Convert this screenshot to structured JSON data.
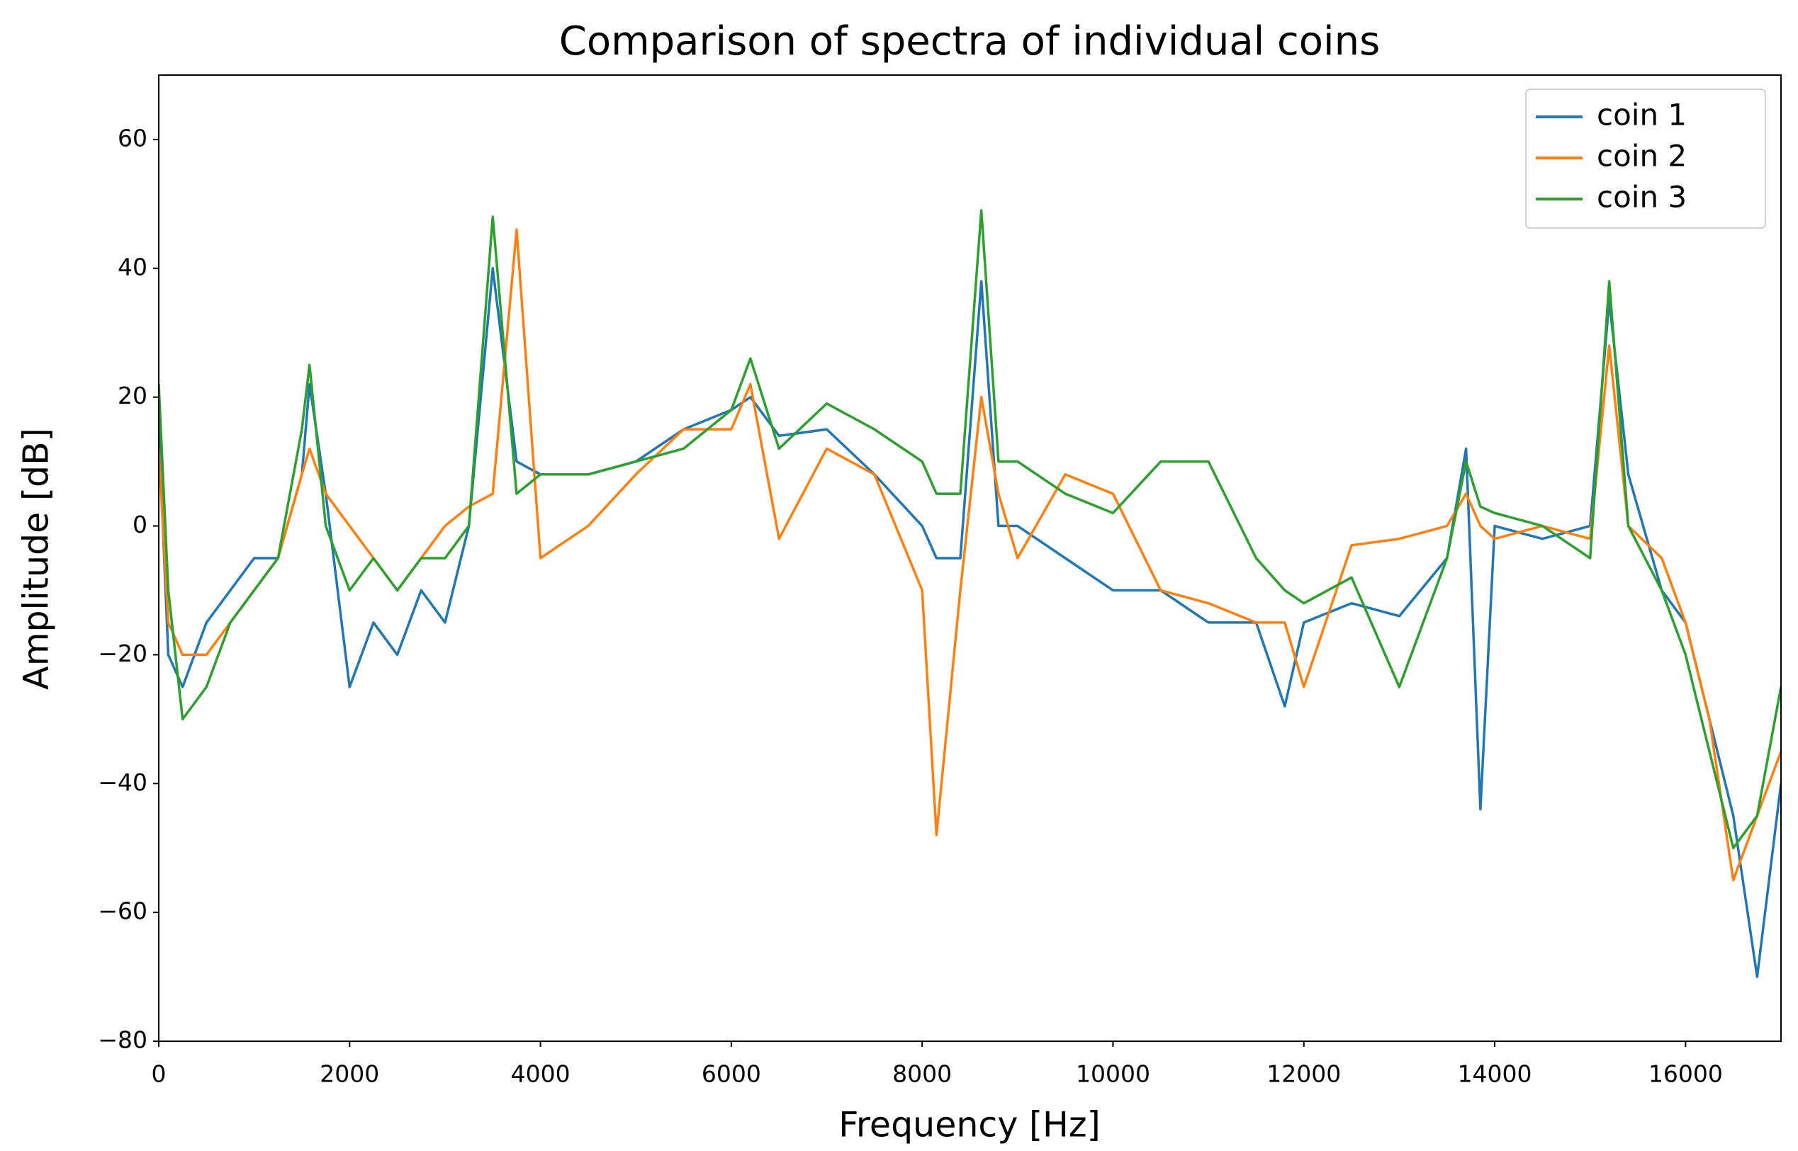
{
  "chart_data": {
    "type": "line",
    "title": "Comparison of spectra of individual coins",
    "xlabel": "Frequency [Hz]",
    "ylabel": "Amplitude [dB]",
    "xlim": [
      0,
      17000
    ],
    "ylim": [
      -80,
      70
    ],
    "xticks": [
      0,
      2000,
      4000,
      6000,
      8000,
      10000,
      12000,
      14000,
      16000
    ],
    "yticks": [
      {
        "value": -80,
        "label": "−80"
      },
      {
        "value": -60,
        "label": "−60"
      },
      {
        "value": -40,
        "label": "−40"
      },
      {
        "value": -20,
        "label": "−20"
      },
      0,
      20,
      40,
      60
    ],
    "legend": "upper right",
    "x": [
      0,
      100,
      250,
      500,
      750,
      1000,
      1250,
      1500,
      1580,
      1750,
      2000,
      2250,
      2500,
      2750,
      3000,
      3250,
      3500,
      3750,
      4000,
      4500,
      5000,
      5500,
      6000,
      6200,
      6500,
      7000,
      7500,
      8000,
      8150,
      8400,
      8620,
      8800,
      9000,
      9500,
      10000,
      10500,
      11000,
      11500,
      11800,
      12000,
      12500,
      13000,
      13500,
      13700,
      13850,
      14000,
      14500,
      15000,
      15200,
      15400,
      15750,
      16000,
      16250,
      16500,
      16750,
      17000
    ],
    "series": [
      {
        "name": "coin 1",
        "color": "#1f77b4",
        "values": [
          15,
          -20,
          -25,
          -15,
          -10,
          -5,
          -5,
          8,
          22,
          5,
          -25,
          -15,
          -20,
          -10,
          -15,
          0,
          40,
          10,
          8,
          8,
          10,
          15,
          18,
          20,
          14,
          15,
          8,
          0,
          -5,
          -5,
          38,
          0,
          0,
          -5,
          -10,
          -10,
          -15,
          -15,
          -28,
          -15,
          -12,
          -14,
          -5,
          12,
          -44,
          0,
          -2,
          0,
          35,
          8,
          -10,
          -15,
          -30,
          -45,
          -70,
          -40
        ]
      },
      {
        "name": "coin 2",
        "color": "#ff7f0e",
        "values": [
          12,
          -15,
          -20,
          -20,
          -15,
          -10,
          -5,
          8,
          12,
          5,
          0,
          -5,
          -10,
          -5,
          0,
          3,
          5,
          46,
          -5,
          0,
          8,
          15,
          15,
          22,
          -2,
          12,
          8,
          -10,
          -48,
          -10,
          20,
          5,
          -5,
          8,
          5,
          -10,
          -12,
          -15,
          -15,
          -25,
          -3,
          -2,
          0,
          5,
          0,
          -2,
          0,
          -2,
          28,
          0,
          -5,
          -15,
          -30,
          -55,
          -45,
          -35
        ]
      },
      {
        "name": "coin 3",
        "color": "#2ca02c",
        "values": [
          22,
          -10,
          -30,
          -25,
          -15,
          -10,
          -5,
          15,
          25,
          0,
          -10,
          -5,
          -10,
          -5,
          -5,
          0,
          48,
          5,
          8,
          8,
          10,
          12,
          18,
          26,
          12,
          19,
          15,
          10,
          5,
          5,
          49,
          10,
          10,
          5,
          2,
          10,
          10,
          -5,
          -10,
          -12,
          -8,
          -25,
          -5,
          10,
          3,
          2,
          0,
          -5,
          38,
          0,
          -10,
          -20,
          -35,
          -50,
          -45,
          -25
        ]
      }
    ]
  }
}
